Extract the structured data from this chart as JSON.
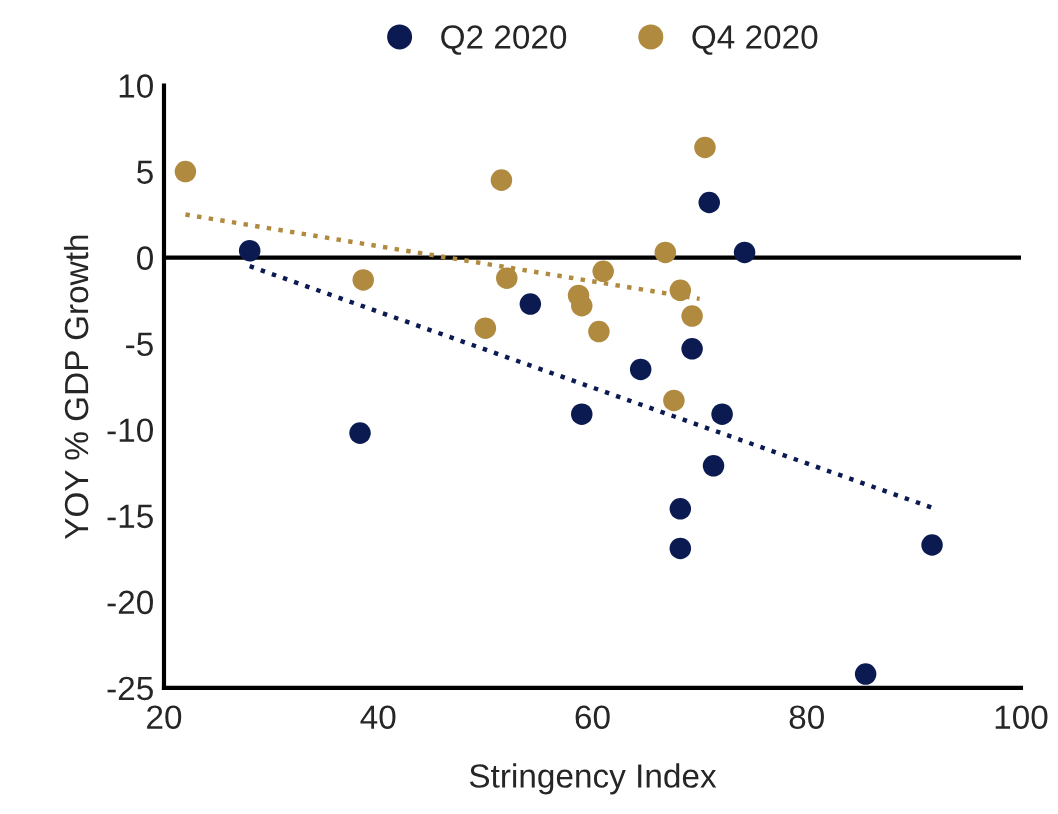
{
  "chart_data": {
    "type": "scatter",
    "xlabel": "Stringency Index",
    "ylabel": "YOY % GDP Growth",
    "xlim": [
      20,
      100
    ],
    "ylim": [
      -25,
      10
    ],
    "xticks": [
      20,
      40,
      60,
      80,
      100
    ],
    "yticks": [
      -25,
      -20,
      -15,
      -10,
      -5,
      0,
      5,
      10
    ],
    "grid": false,
    "legend": "top",
    "marker": "circle",
    "ref_lines": [
      {
        "axis": "y",
        "value": 0,
        "color": "#000000",
        "line_style": "solid"
      }
    ],
    "series": [
      {
        "name": "Q2 2020",
        "color": "#0c1a52",
        "x": [
          28,
          38.3,
          54.2,
          59,
          64.5,
          69.3,
          70.9,
          74.2,
          72.1,
          71.3,
          68.2,
          68.2,
          85.5,
          91.7
        ],
        "values": [
          0.4,
          -10.2,
          -2.7,
          -9.1,
          -6.5,
          -5.3,
          3.2,
          0.3,
          -9.1,
          -12.1,
          -14.6,
          -16.9,
          -24.2,
          -16.7
        ]
      },
      {
        "name": "Q4 2020",
        "color": "#b08a3e",
        "x": [
          22,
          38.6,
          51.5,
          52,
          50,
          61,
          58.7,
          59,
          60.6,
          66.8,
          68.2,
          69.3,
          67.6,
          70.5
        ],
        "values": [
          5,
          -1.3,
          4.5,
          -1.2,
          -4.1,
          -0.8,
          -2.2,
          -2.8,
          -4.3,
          0.3,
          -1.9,
          -3.4,
          -8.3,
          6.4
        ]
      },
      {
        "type": "line",
        "color": "#0c1a52",
        "x": [
          28,
          92
        ],
        "values": [
          -0.5,
          -14.6
        ],
        "marker": "none",
        "line_style": "dotted"
      },
      {
        "type": "line",
        "color": "#b08a3e",
        "x": [
          22,
          70
        ],
        "values": [
          2.5,
          -2.4
        ],
        "marker": "none",
        "line_style": "dotted"
      }
    ]
  }
}
